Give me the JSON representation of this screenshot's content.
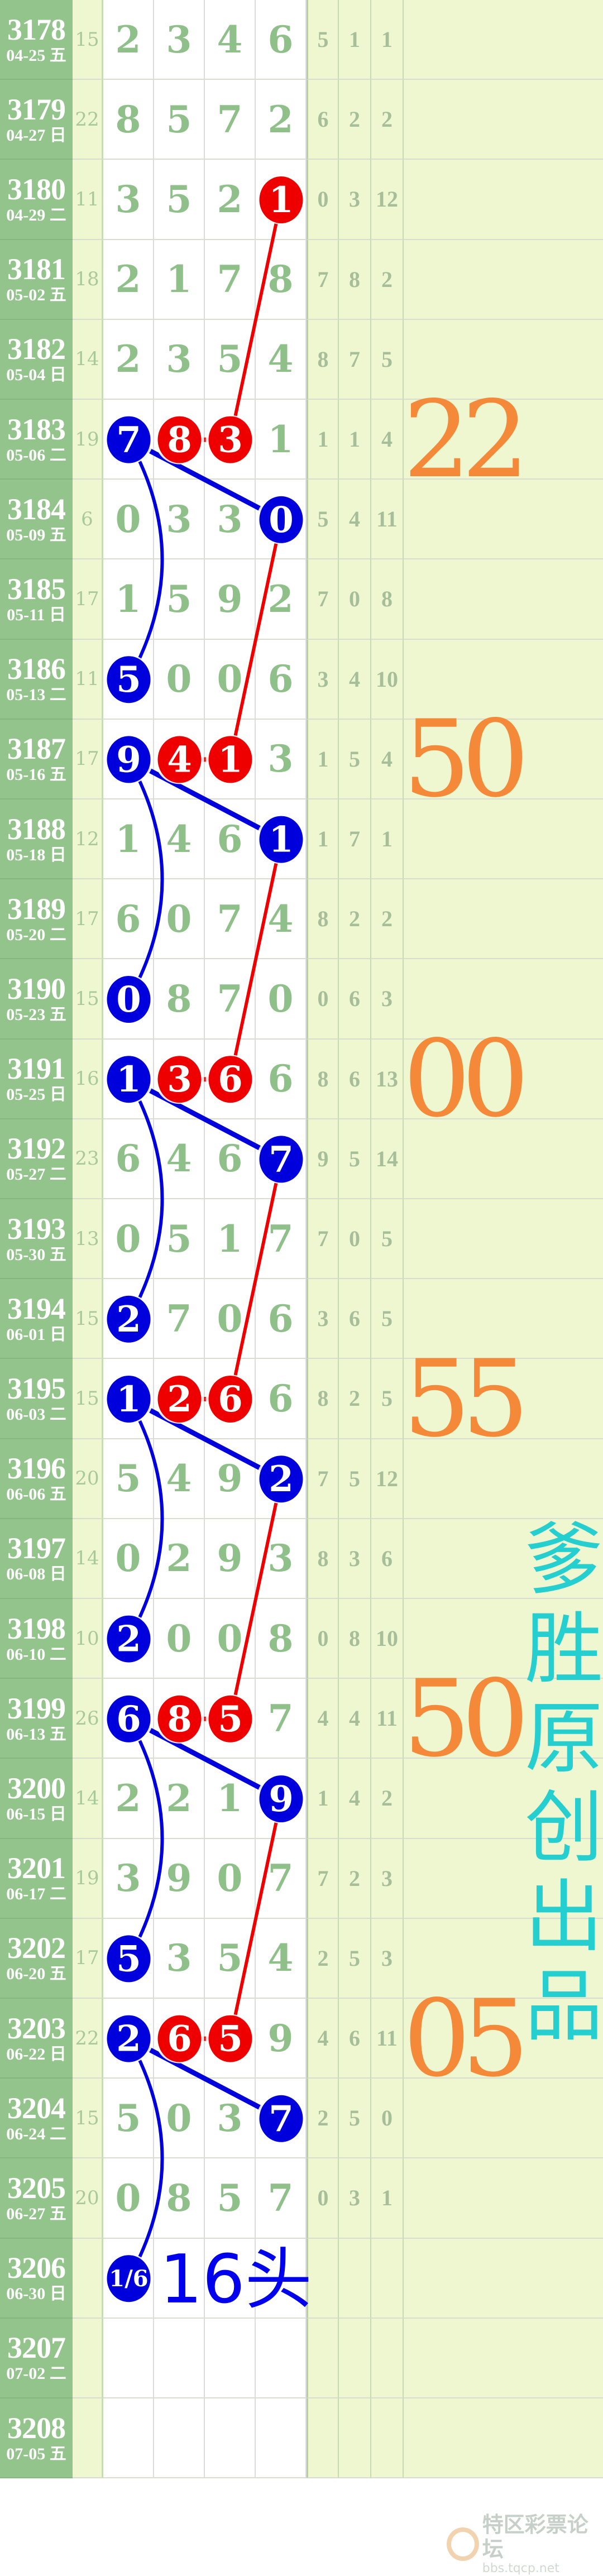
{
  "rows": [
    {
      "issue": "3178",
      "date": "04-25 五",
      "sum": "15",
      "digits": [
        "2",
        "3",
        "4",
        "6"
      ],
      "right": [
        "5",
        "1",
        "1"
      ]
    },
    {
      "issue": "3179",
      "date": "04-27 日",
      "sum": "22",
      "digits": [
        "8",
        "5",
        "7",
        "2"
      ],
      "right": [
        "6",
        "2",
        "2"
      ]
    },
    {
      "issue": "3180",
      "date": "04-29 二",
      "sum": "11",
      "digits": [
        "3",
        "5",
        "2",
        "1"
      ],
      "right": [
        "0",
        "3",
        "12"
      ]
    },
    {
      "issue": "3181",
      "date": "05-02 五",
      "sum": "18",
      "digits": [
        "2",
        "1",
        "7",
        "8"
      ],
      "right": [
        "7",
        "8",
        "2"
      ]
    },
    {
      "issue": "3182",
      "date": "05-04 日",
      "sum": "14",
      "digits": [
        "2",
        "3",
        "5",
        "4"
      ],
      "right": [
        "8",
        "7",
        "5"
      ]
    },
    {
      "issue": "3183",
      "date": "05-06 二",
      "sum": "19",
      "digits": [
        "7",
        "8",
        "3",
        "1"
      ],
      "right": [
        "1",
        "1",
        "4"
      ]
    },
    {
      "issue": "3184",
      "date": "05-09 五",
      "sum": "6",
      "digits": [
        "0",
        "3",
        "3",
        "0"
      ],
      "right": [
        "5",
        "4",
        "11"
      ]
    },
    {
      "issue": "3185",
      "date": "05-11 日",
      "sum": "17",
      "digits": [
        "1",
        "5",
        "9",
        "2"
      ],
      "right": [
        "7",
        "0",
        "8"
      ]
    },
    {
      "issue": "3186",
      "date": "05-13 二",
      "sum": "11",
      "digits": [
        "5",
        "0",
        "0",
        "6"
      ],
      "right": [
        "3",
        "4",
        "10"
      ]
    },
    {
      "issue": "3187",
      "date": "05-16 五",
      "sum": "17",
      "digits": [
        "9",
        "4",
        "1",
        "3"
      ],
      "right": [
        "1",
        "5",
        "4"
      ]
    },
    {
      "issue": "3188",
      "date": "05-18 日",
      "sum": "12",
      "digits": [
        "1",
        "4",
        "6",
        "1"
      ],
      "right": [
        "1",
        "7",
        "1"
      ]
    },
    {
      "issue": "3189",
      "date": "05-20 二",
      "sum": "17",
      "digits": [
        "6",
        "0",
        "7",
        "4"
      ],
      "right": [
        "8",
        "2",
        "2"
      ]
    },
    {
      "issue": "3190",
      "date": "05-23 五",
      "sum": "15",
      "digits": [
        "0",
        "8",
        "7",
        "0"
      ],
      "right": [
        "0",
        "6",
        "3"
      ]
    },
    {
      "issue": "3191",
      "date": "05-25 日",
      "sum": "16",
      "digits": [
        "1",
        "3",
        "6",
        "6"
      ],
      "right": [
        "8",
        "6",
        "13"
      ]
    },
    {
      "issue": "3192",
      "date": "05-27 二",
      "sum": "23",
      "digits": [
        "6",
        "4",
        "6",
        "7"
      ],
      "right": [
        "9",
        "5",
        "14"
      ]
    },
    {
      "issue": "3193",
      "date": "05-30 五",
      "sum": "13",
      "digits": [
        "0",
        "5",
        "1",
        "7"
      ],
      "right": [
        "7",
        "0",
        "5"
      ]
    },
    {
      "issue": "3194",
      "date": "06-01 日",
      "sum": "15",
      "digits": [
        "2",
        "7",
        "0",
        "6"
      ],
      "right": [
        "3",
        "6",
        "5"
      ]
    },
    {
      "issue": "3195",
      "date": "06-03 二",
      "sum": "15",
      "digits": [
        "1",
        "2",
        "6",
        "6"
      ],
      "right": [
        "8",
        "2",
        "5"
      ]
    },
    {
      "issue": "3196",
      "date": "06-06 五",
      "sum": "20",
      "digits": [
        "5",
        "4",
        "9",
        "2"
      ],
      "right": [
        "7",
        "5",
        "12"
      ]
    },
    {
      "issue": "3197",
      "date": "06-08 日",
      "sum": "14",
      "digits": [
        "0",
        "2",
        "9",
        "3"
      ],
      "right": [
        "8",
        "3",
        "6"
      ]
    },
    {
      "issue": "3198",
      "date": "06-10 二",
      "sum": "10",
      "digits": [
        "2",
        "0",
        "0",
        "8"
      ],
      "right": [
        "0",
        "8",
        "10"
      ]
    },
    {
      "issue": "3199",
      "date": "06-13 五",
      "sum": "26",
      "digits": [
        "6",
        "8",
        "5",
        "7"
      ],
      "right": [
        "4",
        "4",
        "11"
      ]
    },
    {
      "issue": "3200",
      "date": "06-15 日",
      "sum": "14",
      "digits": [
        "2",
        "2",
        "1",
        "9"
      ],
      "right": [
        "1",
        "4",
        "2"
      ]
    },
    {
      "issue": "3201",
      "date": "06-17 二",
      "sum": "19",
      "digits": [
        "3",
        "9",
        "0",
        "7"
      ],
      "right": [
        "7",
        "2",
        "3"
      ]
    },
    {
      "issue": "3202",
      "date": "06-20 五",
      "sum": "17",
      "digits": [
        "5",
        "3",
        "5",
        "4"
      ],
      "right": [
        "2",
        "5",
        "3"
      ]
    },
    {
      "issue": "3203",
      "date": "06-22 日",
      "sum": "22",
      "digits": [
        "2",
        "6",
        "5",
        "9"
      ],
      "right": [
        "4",
        "6",
        "11"
      ]
    },
    {
      "issue": "3204",
      "date": "06-24 二",
      "sum": "15",
      "digits": [
        "5",
        "0",
        "3",
        "7"
      ],
      "right": [
        "2",
        "5",
        "0"
      ]
    },
    {
      "issue": "3205",
      "date": "06-27 五",
      "sum": "20",
      "digits": [
        "0",
        "8",
        "5",
        "7"
      ],
      "right": [
        "0",
        "3",
        "1"
      ]
    },
    {
      "issue": "3206",
      "date": "06-30 日",
      "sum": "",
      "digits": [
        "",
        "",
        "",
        ""
      ],
      "right": [
        "",
        "",
        ""
      ]
    },
    {
      "issue": "3207",
      "date": "07-02 二",
      "sum": "",
      "digits": [
        "",
        "",
        "",
        ""
      ],
      "right": [
        "",
        "",
        ""
      ]
    },
    {
      "issue": "3208",
      "date": "07-05 五",
      "sum": "",
      "digits": [
        "",
        "",
        "",
        ""
      ],
      "right": [
        "",
        "",
        ""
      ]
    }
  ],
  "balls": [
    {
      "issue": "3180",
      "col": 4,
      "color": "red",
      "text": "1"
    },
    {
      "issue": "3183",
      "col": 1,
      "color": "blue",
      "text": "7"
    },
    {
      "issue": "3183",
      "col": 2,
      "color": "red",
      "text": "8"
    },
    {
      "issue": "3183",
      "col": 3,
      "color": "red",
      "text": "3"
    },
    {
      "issue": "3184",
      "col": 4,
      "color": "blue",
      "text": "0"
    },
    {
      "issue": "3186",
      "col": 1,
      "color": "blue",
      "text": "5"
    },
    {
      "issue": "3187",
      "col": 1,
      "color": "blue",
      "text": "9"
    },
    {
      "issue": "3187",
      "col": 2,
      "color": "red",
      "text": "4"
    },
    {
      "issue": "3187",
      "col": 3,
      "color": "red",
      "text": "1"
    },
    {
      "issue": "3188",
      "col": 4,
      "color": "blue",
      "text": "1"
    },
    {
      "issue": "3190",
      "col": 1,
      "color": "blue",
      "text": "0"
    },
    {
      "issue": "3191",
      "col": 1,
      "color": "blue",
      "text": "1"
    },
    {
      "issue": "3191",
      "col": 2,
      "color": "red",
      "text": "3"
    },
    {
      "issue": "3191",
      "col": 3,
      "color": "red",
      "text": "6"
    },
    {
      "issue": "3192",
      "col": 4,
      "color": "blue",
      "text": "7"
    },
    {
      "issue": "3194",
      "col": 1,
      "color": "blue",
      "text": "2"
    },
    {
      "issue": "3195",
      "col": 1,
      "color": "blue",
      "text": "1"
    },
    {
      "issue": "3195",
      "col": 2,
      "color": "red",
      "text": "2"
    },
    {
      "issue": "3195",
      "col": 3,
      "color": "red",
      "text": "6"
    },
    {
      "issue": "3196",
      "col": 4,
      "color": "blue",
      "text": "2"
    },
    {
      "issue": "3198",
      "col": 1,
      "color": "blue",
      "text": "2"
    },
    {
      "issue": "3199",
      "col": 1,
      "color": "blue",
      "text": "6"
    },
    {
      "issue": "3199",
      "col": 2,
      "color": "red",
      "text": "8"
    },
    {
      "issue": "3199",
      "col": 3,
      "color": "red",
      "text": "5"
    },
    {
      "issue": "3200",
      "col": 4,
      "color": "blue",
      "text": "9"
    },
    {
      "issue": "3202",
      "col": 1,
      "color": "blue",
      "text": "5"
    },
    {
      "issue": "3203",
      "col": 1,
      "color": "blue",
      "text": "2"
    },
    {
      "issue": "3203",
      "col": 2,
      "color": "red",
      "text": "6"
    },
    {
      "issue": "3203",
      "col": 3,
      "color": "red",
      "text": "5"
    },
    {
      "issue": "3204",
      "col": 4,
      "color": "blue",
      "text": "7"
    },
    {
      "issue": "3206",
      "col": 1,
      "color": "blue",
      "text": "1/6"
    }
  ],
  "orange_marks": [
    {
      "issue": "3183",
      "text": "22"
    },
    {
      "issue": "3187",
      "text": "50"
    },
    {
      "issue": "3191",
      "text": "00"
    },
    {
      "issue": "3195",
      "text": "55"
    },
    {
      "issue": "3199",
      "text": "50"
    },
    {
      "issue": "3203",
      "text": "05"
    }
  ],
  "vertical_caption": "爹胜原创出品",
  "prediction_label": "16头",
  "watermark": {
    "name": "特区彩票论坛",
    "url": "bbs.tqcp.net"
  },
  "colors": {
    "red_ball": "#ee0000",
    "blue_ball": "#0000dd",
    "orange": "#f5893a",
    "teal": "#25cfd0",
    "date_bg": "#93c48b",
    "digit": "#8fc08a"
  }
}
